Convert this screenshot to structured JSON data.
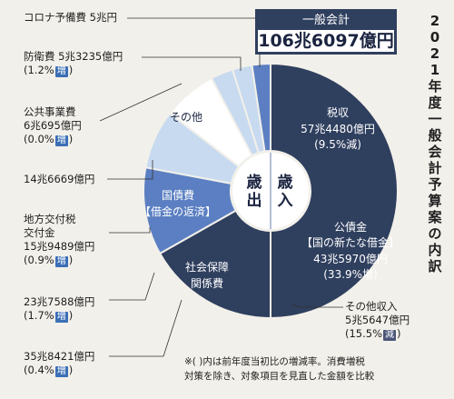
{
  "title_vertical": "2021年度一般会計予算案の内訳",
  "total": {
    "label": "一般会計",
    "amount": "106兆6097億円"
  },
  "center": {
    "revenue": "歳入",
    "expenditure": "歳出"
  },
  "note": [
    "※(  )内は前年度当初比の増減率。消費増税",
    "対策を除き、対象項目を見直した金額を比較"
  ],
  "colors": {
    "dark": "#2f3f5e",
    "mid": "#5b7fc2",
    "light": "#c7daf0",
    "white": "#ffffff"
  },
  "inner_labels": {
    "tax": [
      "税収",
      "57兆4480億円",
      "(9.5%",
      "減",
      ")"
    ],
    "bonds": [
      "公債金",
      "【国の新たな借金】",
      "43兆5970億円",
      "(33.9%",
      "増",
      ")"
    ],
    "social": [
      "社会保障",
      "関係費"
    ],
    "debt": [
      "国債費",
      "【借金の返済】"
    ],
    "other": "その他"
  },
  "outer_labels": {
    "corona": "コロナ予備費 5兆円",
    "defense": [
      "防衛費 5兆3235億円",
      "(1.2%",
      "増",
      ")"
    ],
    "public": [
      "公共事業費",
      "6兆695億円",
      "(0.0%",
      "増",
      ")"
    ],
    "other_exp": "14兆6669億円",
    "local": [
      "地方交付税",
      "交付金",
      "15兆9489億円",
      "(0.9%",
      "増",
      ")"
    ],
    "debt_exp": [
      "23兆7588億円",
      "(1.7%",
      "増",
      ")"
    ],
    "social_exp": [
      "35兆8421億円",
      "(0.4%",
      "増",
      ")"
    ],
    "other_rev": [
      "その他収入",
      "5兆5647億円",
      "(15.5%",
      "減",
      ")"
    ]
  },
  "chart_data": {
    "type": "pie",
    "title": "2021年度一般会計予算案の内訳",
    "total": "106兆6097億円",
    "unit": "億円",
    "series": [
      {
        "name": "歳入",
        "slices": [
          {
            "label": "税収",
            "value": 574480,
            "change": "9.5%減"
          },
          {
            "label": "公債金【国の新たな借金】",
            "value": 435970,
            "change": "33.9%増"
          },
          {
            "label": "その他収入",
            "value": 55647,
            "change": "15.5%減"
          }
        ]
      },
      {
        "name": "歳出",
        "slices": [
          {
            "label": "社会保障関係費",
            "value": 358421,
            "change": "0.4%増"
          },
          {
            "label": "国債費【借金の返済】",
            "value": 237588,
            "change": "1.7%増"
          },
          {
            "label": "地方交付税交付金",
            "value": 159489,
            "change": "0.9%増"
          },
          {
            "label": "その他",
            "value": 146669
          },
          {
            "label": "公共事業費",
            "value": 60695,
            "change": "0.0%増"
          },
          {
            "label": "防衛費",
            "value": 53235,
            "change": "1.2%増"
          },
          {
            "label": "コロナ予備費",
            "value": 50000
          }
        ]
      }
    ]
  }
}
